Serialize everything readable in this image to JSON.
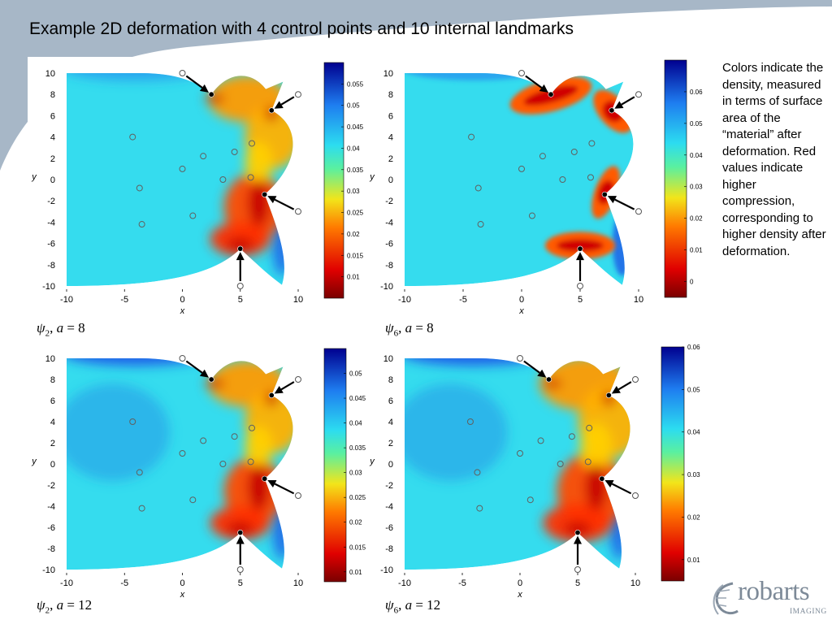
{
  "title": "Example 2D deformation with 4 control points and 10 internal landmarks",
  "note": "Colors indicate the density, measured in terms of surface area of the “material” after deformation. Red values indicate higher compression, corresponding to higher density after deformation.",
  "logo": {
    "word": "robarts",
    "sub": "IMAGING"
  },
  "colors": {
    "background_wave": "#a7b7c7",
    "arrow": "#000000",
    "field_base": "#33ddee"
  },
  "chart_data": [
    {
      "type": "heatmap",
      "caption": {
        "psi_index": "2",
        "a_value": "8"
      },
      "xlabel": "x",
      "ylabel": "y",
      "xlim": [
        -10,
        10
      ],
      "ylim": [
        -10,
        10
      ],
      "xticks": [
        -10,
        -5,
        0,
        5,
        10
      ],
      "yticks": [
        10,
        8,
        6,
        4,
        2,
        0,
        -2,
        -4,
        -6,
        -8,
        -10
      ],
      "colorbar": {
        "min": 0.005,
        "max": 0.06,
        "ticks": [
          0.055,
          0.05,
          0.045,
          0.04,
          0.035,
          0.03,
          0.025,
          0.02,
          0.015,
          0.01
        ]
      },
      "control_points": [
        {
          "from": [
            0,
            10
          ],
          "to": [
            2.5,
            8
          ]
        },
        {
          "from": [
            10,
            8
          ],
          "to": [
            7.7,
            6.5
          ]
        },
        {
          "from": [
            10,
            -3
          ],
          "to": [
            7.1,
            -1.4
          ]
        },
        {
          "from": [
            5,
            -10
          ],
          "to": [
            5,
            -6.5
          ]
        }
      ],
      "landmarks": [
        [
          -4.3,
          4
        ],
        [
          1.8,
          2.2
        ],
        [
          4.5,
          2.6
        ],
        [
          6,
          3.4
        ],
        [
          0,
          1
        ],
        [
          3.5,
          0
        ],
        [
          5.9,
          0.2
        ],
        [
          -3.7,
          -0.8
        ],
        [
          0.9,
          -3.4
        ],
        [
          -3.5,
          -4.2
        ]
      ]
    },
    {
      "type": "heatmap",
      "caption": {
        "psi_index": "6",
        "a_value": "8"
      },
      "xlabel": "x",
      "ylabel": "y",
      "xlim": [
        -10,
        10
      ],
      "ylim": [
        -10,
        10
      ],
      "xticks": [
        -10,
        -5,
        0,
        5,
        10
      ],
      "yticks": [
        10,
        8,
        6,
        4,
        2,
        0,
        -2,
        -4,
        -6,
        -8,
        -10
      ],
      "colorbar": {
        "min": -0.005,
        "max": 0.07,
        "ticks": [
          0.06,
          0.05,
          0.04,
          0.03,
          0.02,
          0.01,
          0
        ]
      },
      "control_points": [
        {
          "from": [
            0,
            10
          ],
          "to": [
            2.5,
            8
          ]
        },
        {
          "from": [
            10,
            8
          ],
          "to": [
            7.7,
            6.5
          ]
        },
        {
          "from": [
            10,
            -3
          ],
          "to": [
            7.1,
            -1.4
          ]
        },
        {
          "from": [
            5,
            -10
          ],
          "to": [
            5,
            -6.5
          ]
        }
      ],
      "landmarks": [
        [
          -4.3,
          4
        ],
        [
          1.8,
          2.2
        ],
        [
          4.5,
          2.6
        ],
        [
          6,
          3.4
        ],
        [
          0,
          1
        ],
        [
          3.5,
          0
        ],
        [
          5.9,
          0.2
        ],
        [
          -3.7,
          -0.8
        ],
        [
          0.9,
          -3.4
        ],
        [
          -3.5,
          -4.2
        ]
      ]
    },
    {
      "type": "heatmap",
      "caption": {
        "psi_index": "2",
        "a_value": "12"
      },
      "xlabel": "x",
      "ylabel": "y",
      "xlim": [
        -10,
        10
      ],
      "ylim": [
        -10,
        10
      ],
      "xticks": [
        -10,
        -5,
        0,
        5,
        10
      ],
      "yticks": [
        10,
        8,
        6,
        4,
        2,
        0,
        -2,
        -4,
        -6,
        -8,
        -10
      ],
      "colorbar": {
        "min": 0.008,
        "max": 0.055,
        "ticks": [
          0.05,
          0.045,
          0.04,
          0.035,
          0.03,
          0.025,
          0.02,
          0.015,
          0.01
        ]
      },
      "control_points": [
        {
          "from": [
            0,
            10
          ],
          "to": [
            2.5,
            8
          ]
        },
        {
          "from": [
            10,
            8
          ],
          "to": [
            7.7,
            6.5
          ]
        },
        {
          "from": [
            10,
            -3
          ],
          "to": [
            7.1,
            -1.4
          ]
        },
        {
          "from": [
            5,
            -10
          ],
          "to": [
            5,
            -6.5
          ]
        }
      ],
      "landmarks": [
        [
          -4.3,
          4
        ],
        [
          1.8,
          2.2
        ],
        [
          4.5,
          2.6
        ],
        [
          6,
          3.4
        ],
        [
          0,
          1
        ],
        [
          3.5,
          0
        ],
        [
          5.9,
          0.2
        ],
        [
          -3.7,
          -0.8
        ],
        [
          0.9,
          -3.4
        ],
        [
          -3.5,
          -4.2
        ]
      ]
    },
    {
      "type": "heatmap",
      "caption": {
        "psi_index": "6",
        "a_value": "12"
      },
      "xlabel": "x",
      "ylabel": "y",
      "xlim": [
        -10,
        10
      ],
      "ylim": [
        -10,
        10
      ],
      "xticks": [
        -10,
        -5,
        0,
        5,
        10
      ],
      "yticks": [
        10,
        8,
        6,
        4,
        2,
        0,
        -2,
        -4,
        -6,
        -8,
        -10
      ],
      "colorbar": {
        "min": 0.005,
        "max": 0.06,
        "ticks": [
          0.06,
          0.05,
          0.04,
          0.03,
          0.02,
          0.01
        ]
      },
      "control_points": [
        {
          "from": [
            0,
            10
          ],
          "to": [
            2.5,
            8
          ]
        },
        {
          "from": [
            10,
            8
          ],
          "to": [
            7.7,
            6.5
          ]
        },
        {
          "from": [
            10,
            -3
          ],
          "to": [
            7.1,
            -1.4
          ]
        },
        {
          "from": [
            5,
            -10
          ],
          "to": [
            5,
            -6.5
          ]
        }
      ],
      "landmarks": [
        [
          -4.3,
          4
        ],
        [
          1.8,
          2.2
        ],
        [
          4.5,
          2.6
        ],
        [
          6,
          3.4
        ],
        [
          0,
          1
        ],
        [
          3.5,
          0
        ],
        [
          5.9,
          0.2
        ],
        [
          -3.7,
          -0.8
        ],
        [
          0.9,
          -3.4
        ],
        [
          -3.5,
          -4.2
        ]
      ]
    }
  ]
}
